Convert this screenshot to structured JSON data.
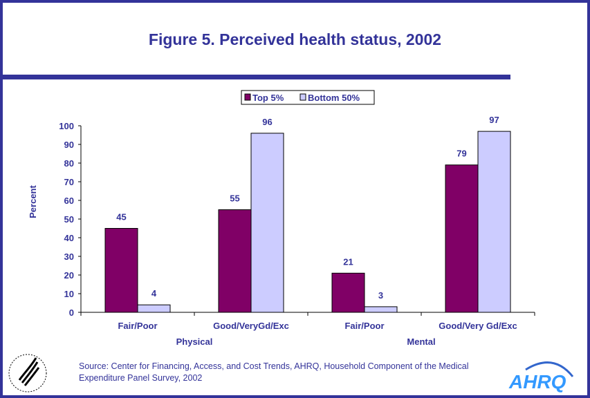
{
  "chart_data": {
    "type": "bar",
    "title": "Figure 5. Perceived health status, 2002",
    "ylabel": "Percent",
    "ylim": [
      0,
      100
    ],
    "yticks": [
      0,
      10,
      20,
      30,
      40,
      50,
      60,
      70,
      80,
      90,
      100
    ],
    "categories": [
      "Fair/Poor",
      "Good/VeryGd/Exc",
      "Fair/Poor",
      "Good/Very Gd/Exc"
    ],
    "groups": [
      {
        "label": "Physical",
        "span": [
          0,
          1
        ]
      },
      {
        "label": "Mental",
        "span": [
          2,
          3
        ]
      }
    ],
    "series": [
      {
        "name": "Top 5%",
        "values": [
          45,
          55,
          21,
          79
        ],
        "color": "#800066"
      },
      {
        "name": "Bottom 50%",
        "values": [
          4,
          96,
          3,
          97
        ],
        "color": "#ccccff"
      }
    ],
    "legend_position": "top",
    "grid": false
  },
  "source": "Source: Center for Financing, Access, and Cost Trends, AHRQ, Household Component of the Medical Expenditure Panel Survey, 2002",
  "logos": {
    "hhs": "DEPARTMENT OF HEALTH & HUMAN SERVICES USA",
    "ahrq": "AHRQ"
  }
}
